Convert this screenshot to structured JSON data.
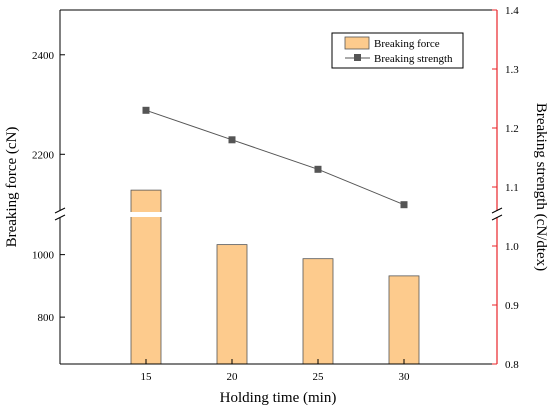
{
  "chart_data": {
    "type": "bar",
    "categories": [
      "15",
      "20",
      "25",
      "30"
    ],
    "xlabel": "Holding time (min)",
    "series": [
      {
        "name": "Breaking force",
        "type": "bar",
        "axis": "left",
        "color": "#FDCB8D",
        "edge_color": "#555555",
        "values": [
          2128,
          1032,
          987,
          932
        ]
      },
      {
        "name": "Breaking strength",
        "type": "line",
        "axis": "right",
        "color": "#555555",
        "marker": "square",
        "values": [
          1.23,
          1.18,
          1.13,
          1.07
        ]
      }
    ],
    "left_axis": {
      "label": "Breaking force (cN)",
      "broken": true,
      "lower_segment": {
        "range": [
          650,
          1130
        ],
        "ticks": [
          800,
          1000
        ]
      },
      "upper_segment": {
        "range": [
          2080,
          2490
        ],
        "ticks": [
          2200,
          2400
        ]
      }
    },
    "right_axis": {
      "label": "Breaking strength (cN/dtex)",
      "color": "#E8242A",
      "range": [
        0.8,
        1.4
      ],
      "ticks": [
        "0.8",
        "0.9",
        "1.0",
        "1.1",
        "1.2",
        "1.3",
        "1.4"
      ],
      "broken": true
    },
    "legend": {
      "position": "top-right"
    }
  }
}
